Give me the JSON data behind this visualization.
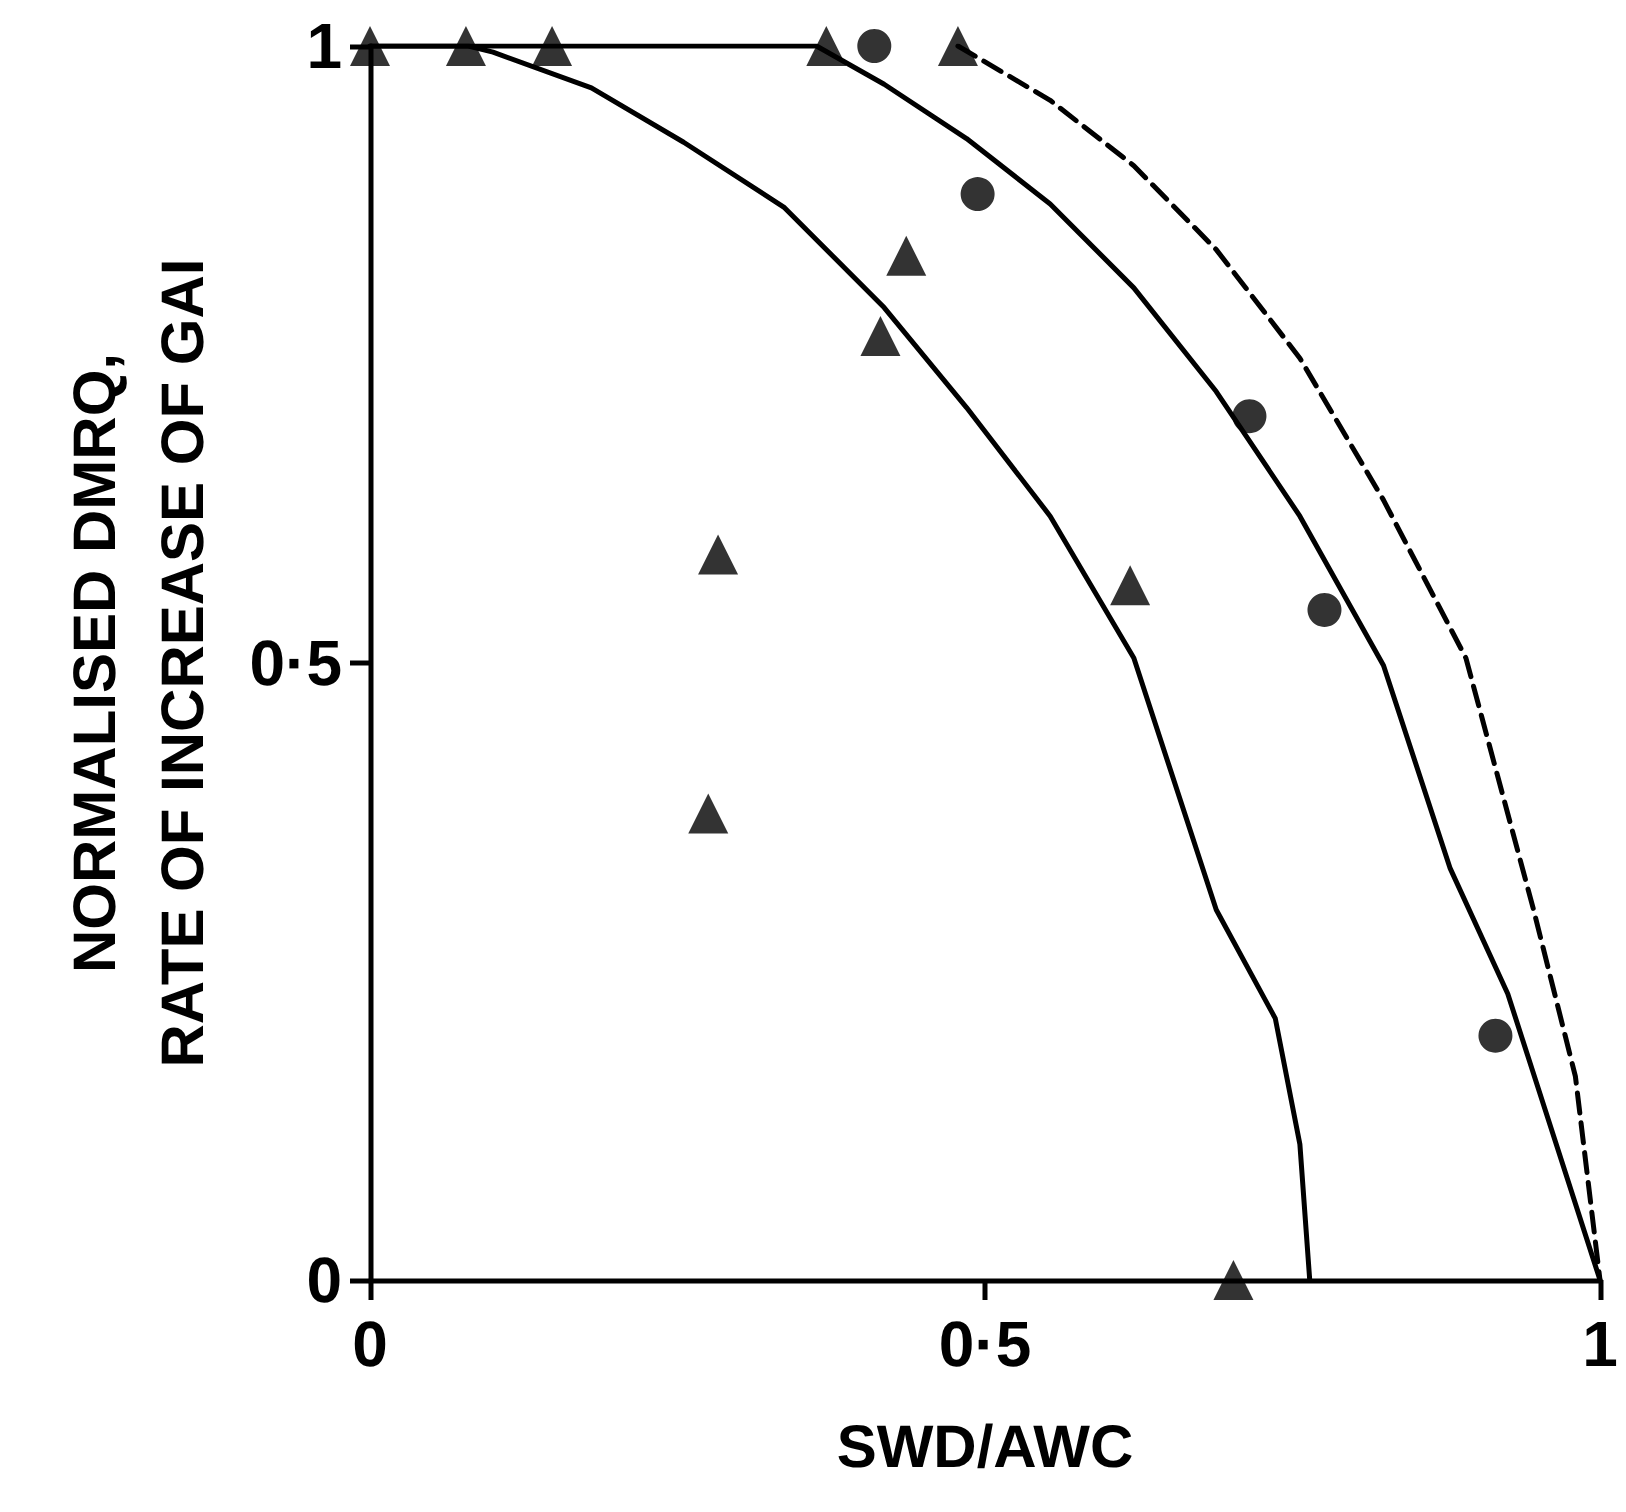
{
  "chart_data": {
    "type": "scatter",
    "xlabel": "SWD/AWC",
    "ylabel": "NORMALISED DMRQ,\nRATE OF INCREASE OF GAI",
    "xlim": [
      0,
      1
    ],
    "ylim": [
      0,
      1
    ],
    "xticks": [
      0,
      {
        "value": 0.5,
        "label": "0·5"
      },
      1
    ],
    "yticks": [
      0,
      {
        "value": 0.5,
        "label": "0·5"
      },
      1
    ],
    "grid": false,
    "series": [
      {
        "type": "line",
        "color": "#000000",
        "marker": "none",
        "line_style": "solid",
        "x": [
          0,
          0.08,
          0.1,
          0.18,
          0.255,
          0.337,
          0.418,
          0.485,
          0.553,
          0.621,
          0.688,
          0.736,
          0.756,
          0.764
        ],
        "values": [
          1,
          1,
          0.995,
          0.966,
          0.922,
          0.869,
          0.788,
          0.707,
          0.619,
          0.504,
          0.3,
          0.212,
          0.11,
          0
        ]
      },
      {
        "type": "line",
        "color": "#000000",
        "marker": "none",
        "line_style": "solid",
        "x": [
          0,
          0.363,
          0.418,
          0.485,
          0.553,
          0.621,
          0.688,
          0.756,
          0.824,
          0.878,
          0.925,
          1
        ],
        "values": [
          1,
          1,
          0.969,
          0.925,
          0.872,
          0.804,
          0.72,
          0.619,
          0.498,
          0.334,
          0.232,
          0
        ]
      },
      {
        "type": "line",
        "color": "#000000",
        "marker": "none",
        "line_style": "dashed",
        "x": [
          0.478,
          0.553,
          0.621,
          0.688,
          0.756,
          0.824,
          0.891,
          0.946,
          0.98,
          1
        ],
        "values": [
          1,
          0.956,
          0.903,
          0.835,
          0.747,
          0.632,
          0.504,
          0.3,
          0.165,
          0
        ]
      },
      {
        "type": "scatter",
        "color": "#000000",
        "marker": "triangle",
        "x": [
          0,
          0.078,
          0.148,
          0.371,
          0.478,
          0.436,
          0.415,
          0.283,
          0.275,
          0.618,
          0.702
        ],
        "values": [
          1,
          1,
          1,
          1,
          1,
          0.83,
          0.765,
          0.588,
          0.378,
          0.563,
          0
        ]
      },
      {
        "type": "scatter",
        "color": "#000000",
        "marker": "circle",
        "x": [
          0.41,
          0.494,
          0.715,
          0.776,
          0.915
        ],
        "values": [
          1,
          0.88,
          0.7,
          0.543,
          0.198
        ]
      }
    ]
  }
}
